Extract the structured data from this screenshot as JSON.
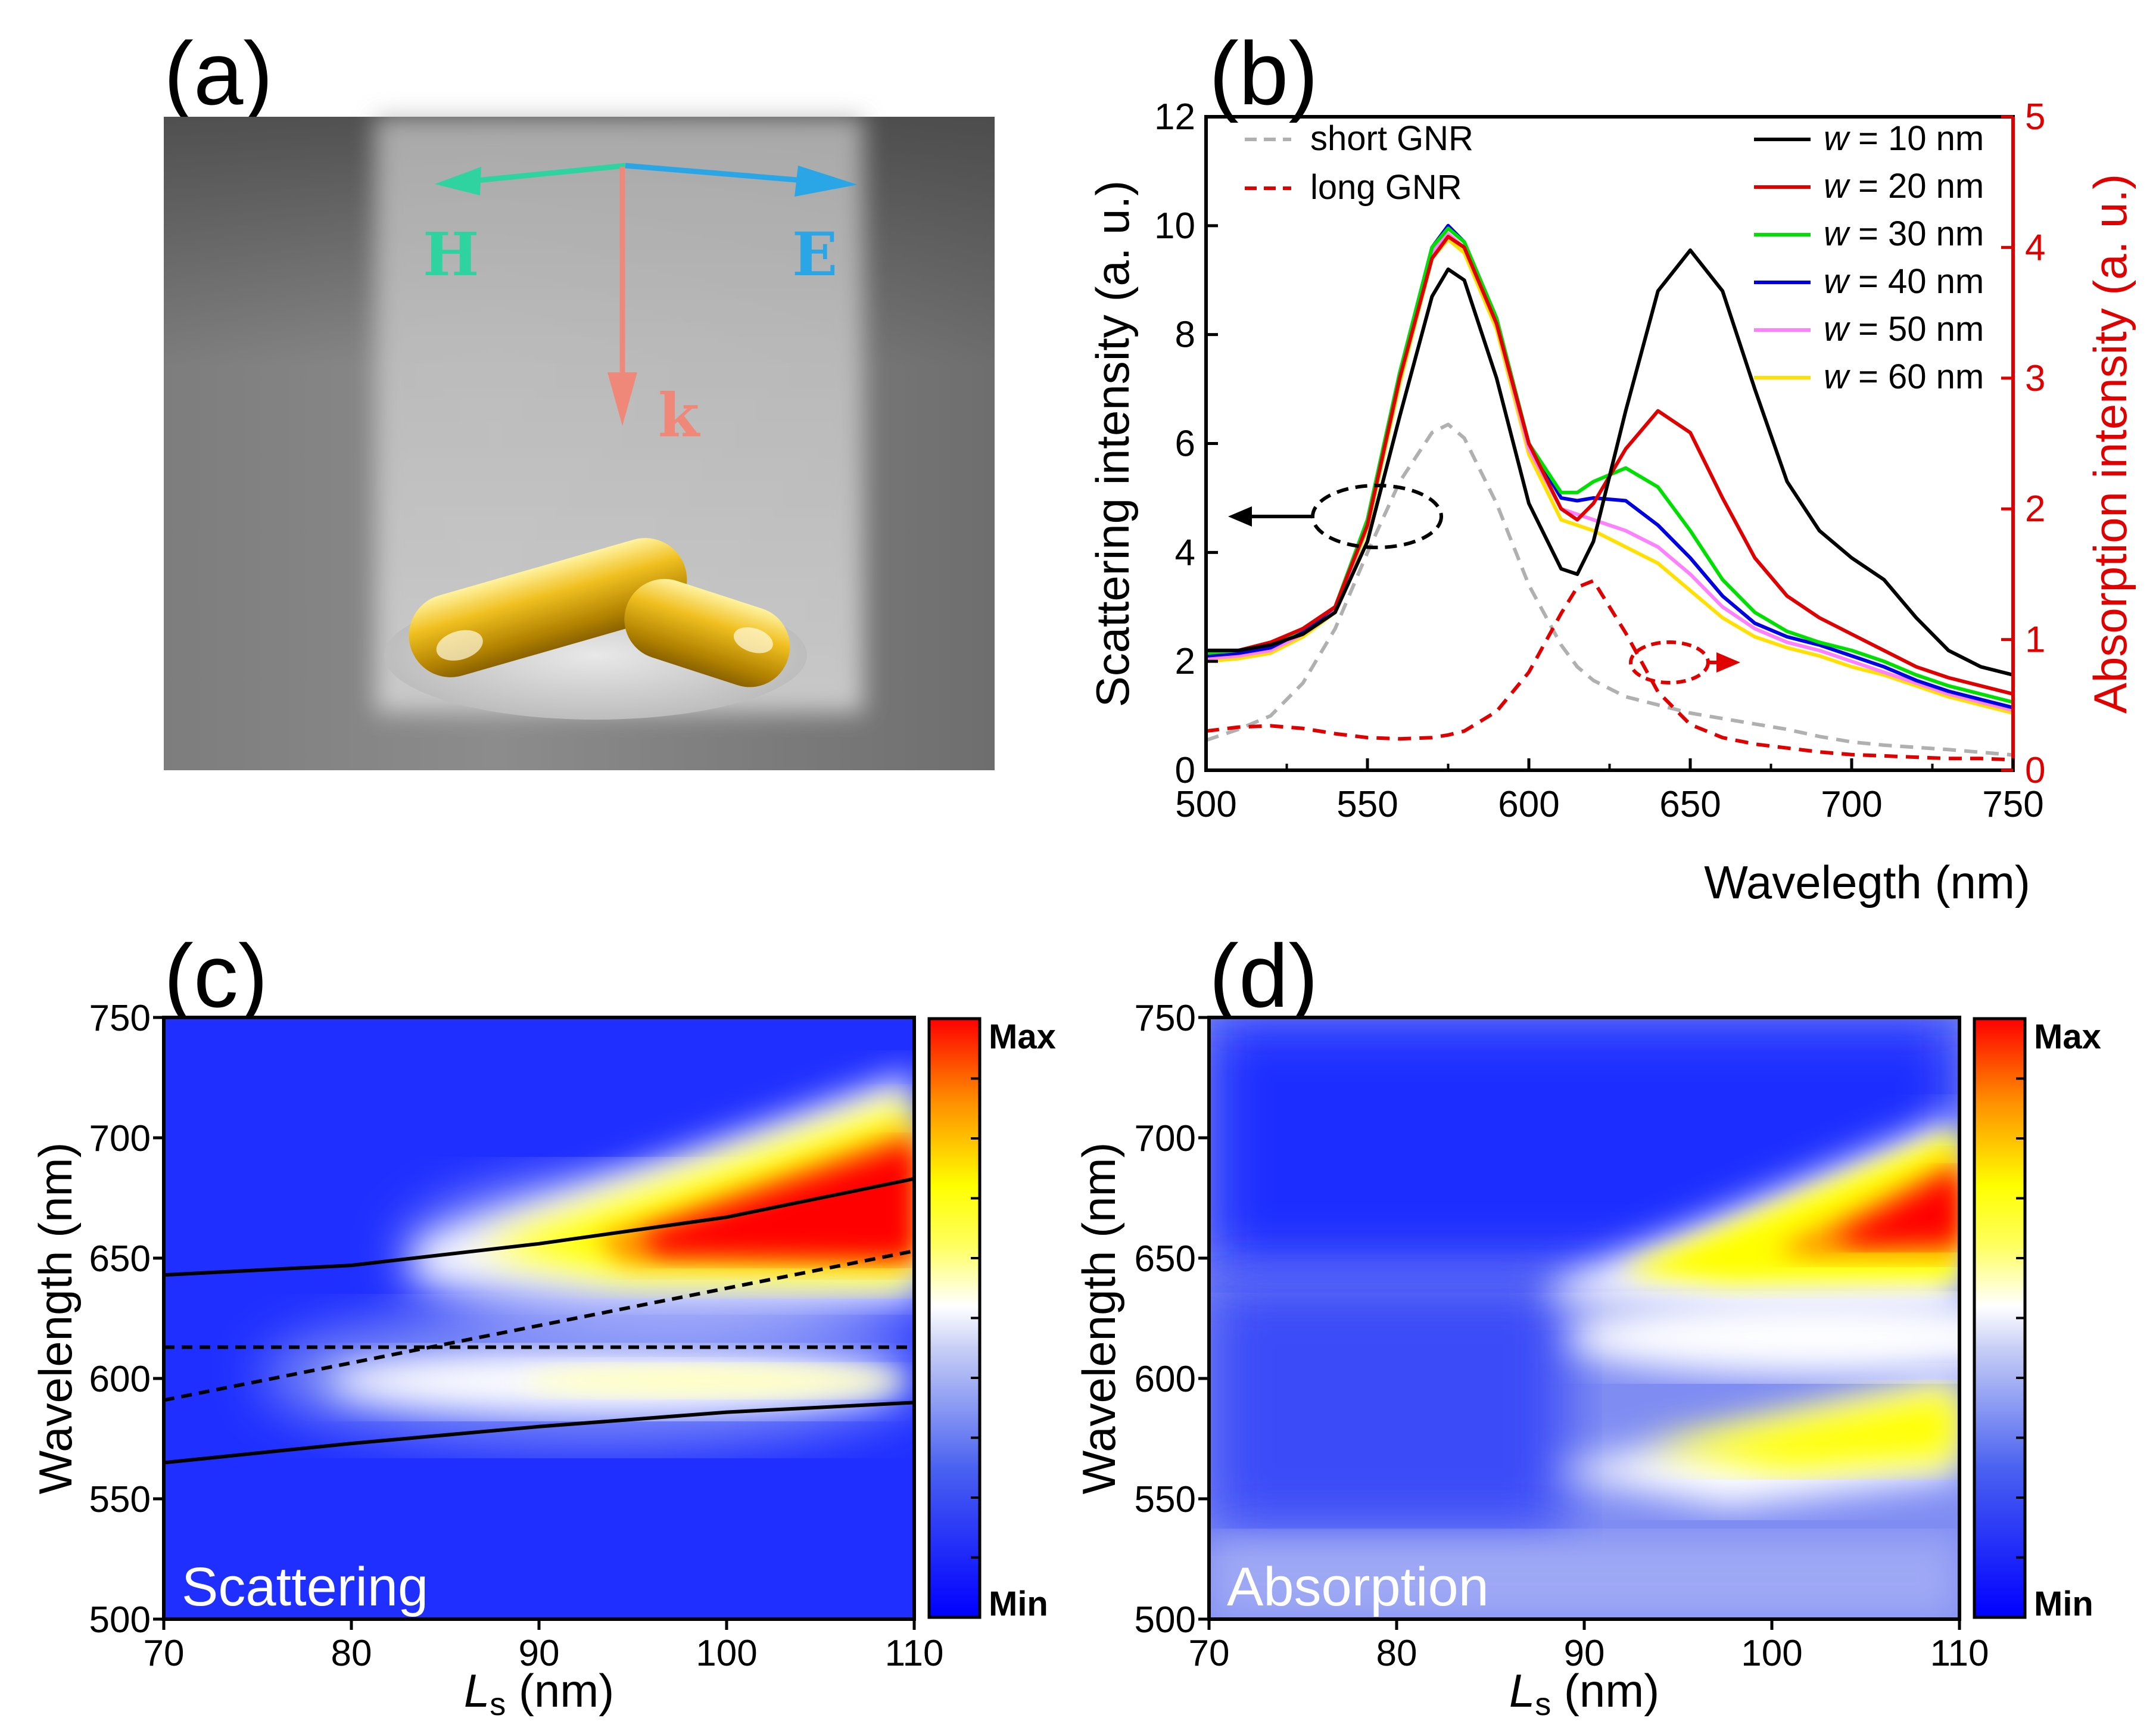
{
  "panels": {
    "a": {
      "label": "(a)",
      "h_label": "H",
      "e_label": "E",
      "k_label": "k"
    },
    "b": {
      "label": "(b)"
    },
    "c": {
      "label": "(c)",
      "inset": "Scattering"
    },
    "d": {
      "label": "(d)",
      "inset": "Absorption"
    }
  },
  "colors": {
    "H": "#2fd3a0",
    "E": "#2aa6e6",
    "k": "#f0887a"
  },
  "colorbar": {
    "max": "Max",
    "min": "Min"
  },
  "chart_data": [
    {
      "id": "b",
      "type": "line",
      "xlabel": "Wavelegth (nm)",
      "ylabel": "Scattering intensity (a. u.)",
      "y2label": "Absorption intensity (a. u.)",
      "xlim": [
        500,
        750
      ],
      "ylim": [
        0,
        12
      ],
      "y2lim": [
        0,
        5
      ],
      "xticks": [
        "500",
        "550",
        "600",
        "650",
        "700",
        "750"
      ],
      "yticks": [
        "0",
        "2",
        "4",
        "6",
        "8",
        "10",
        "12"
      ],
      "y2ticks": [
        "0",
        "1",
        "2",
        "3",
        "4",
        "5"
      ],
      "x": [
        500,
        510,
        520,
        530,
        540,
        550,
        560,
        570,
        575,
        580,
        590,
        600,
        610,
        615,
        620,
        630,
        640,
        650,
        660,
        670,
        680,
        690,
        700,
        710,
        720,
        730,
        740,
        750
      ],
      "series": [
        {
          "name": "short GNR",
          "axis": "left",
          "color": "#b0b0b0",
          "dash": true,
          "values": [
            0.55,
            0.75,
            1.0,
            1.6,
            2.6,
            4.0,
            5.3,
            6.2,
            6.35,
            6.1,
            4.9,
            3.4,
            2.3,
            1.9,
            1.65,
            1.35,
            1.2,
            1.05,
            0.95,
            0.85,
            0.75,
            0.62,
            0.52,
            0.46,
            0.42,
            0.38,
            0.33,
            0.28
          ]
        },
        {
          "name": "long GNR",
          "axis": "right",
          "color": "#e00000",
          "dash": true,
          "values": [
            0.3,
            0.33,
            0.34,
            0.32,
            0.28,
            0.25,
            0.24,
            0.25,
            0.27,
            0.3,
            0.45,
            0.75,
            1.2,
            1.4,
            1.45,
            1.05,
            0.6,
            0.35,
            0.25,
            0.2,
            0.17,
            0.14,
            0.12,
            0.11,
            0.1,
            0.09,
            0.09,
            0.08
          ]
        },
        {
          "name": "w = 10 nm",
          "axis": "left",
          "color": "#000000",
          "values": [
            2.2,
            2.2,
            2.3,
            2.5,
            2.9,
            4.2,
            6.5,
            8.7,
            9.2,
            9.0,
            7.2,
            4.9,
            3.7,
            3.6,
            4.2,
            6.6,
            8.8,
            9.55,
            8.8,
            7.0,
            5.3,
            4.4,
            3.9,
            3.5,
            2.8,
            2.2,
            1.9,
            1.75
          ]
        },
        {
          "name": "w = 20 nm",
          "axis": "left",
          "color": "#e00000",
          "values": [
            2.2,
            2.2,
            2.35,
            2.6,
            3.0,
            4.5,
            7.2,
            9.4,
            9.8,
            9.6,
            8.2,
            6.0,
            4.8,
            4.6,
            4.9,
            5.9,
            6.6,
            6.2,
            5.0,
            3.9,
            3.2,
            2.8,
            2.5,
            2.2,
            1.9,
            1.7,
            1.55,
            1.4
          ]
        },
        {
          "name": "w = 30 nm",
          "axis": "left",
          "color": "#00e000",
          "values": [
            2.15,
            2.2,
            2.3,
            2.6,
            3.0,
            4.6,
            7.3,
            9.6,
            9.95,
            9.7,
            8.3,
            6.0,
            5.1,
            5.1,
            5.3,
            5.55,
            5.2,
            4.4,
            3.5,
            2.9,
            2.55,
            2.35,
            2.2,
            2.0,
            1.75,
            1.55,
            1.4,
            1.25
          ]
        },
        {
          "name": "w = 40 nm",
          "axis": "left",
          "color": "#0000e0",
          "values": [
            2.1,
            2.15,
            2.25,
            2.55,
            3.0,
            4.6,
            7.3,
            9.6,
            10.0,
            9.7,
            8.3,
            6.0,
            5.0,
            4.95,
            5.0,
            4.95,
            4.5,
            3.9,
            3.2,
            2.7,
            2.45,
            2.3,
            2.1,
            1.9,
            1.65,
            1.45,
            1.3,
            1.15
          ]
        },
        {
          "name": "w = 50 nm",
          "axis": "left",
          "color": "#ff80ff",
          "values": [
            2.05,
            2.1,
            2.2,
            2.5,
            2.95,
            4.5,
            7.2,
            9.5,
            9.85,
            9.6,
            8.2,
            5.9,
            4.8,
            4.7,
            4.6,
            4.4,
            4.1,
            3.6,
            3.0,
            2.6,
            2.35,
            2.2,
            2.0,
            1.8,
            1.6,
            1.4,
            1.25,
            1.1
          ]
        },
        {
          "name": "w = 60 nm",
          "axis": "left",
          "color": "#ffe000",
          "values": [
            2.0,
            2.05,
            2.15,
            2.45,
            2.9,
            4.45,
            7.1,
            9.4,
            9.75,
            9.5,
            8.1,
            5.8,
            4.6,
            4.5,
            4.4,
            4.1,
            3.8,
            3.3,
            2.8,
            2.45,
            2.25,
            2.1,
            1.9,
            1.75,
            1.55,
            1.35,
            1.2,
            1.05
          ]
        }
      ]
    },
    {
      "id": "c",
      "type": "heatmap",
      "title": "Scattering",
      "xlabel_main": "L",
      "xlabel_sub": "s",
      "xlabel_unit": " (nm)",
      "ylabel": "Wavelength (nm)",
      "xlim": [
        70,
        110
      ],
      "ylim": [
        500,
        750
      ],
      "xticks": [
        "70",
        "80",
        "90",
        "100",
        "110"
      ],
      "yticks": [
        "500",
        "550",
        "600",
        "650",
        "700",
        "750"
      ],
      "upper_branch": [
        [
          70,
          643
        ],
        [
          80,
          647
        ],
        [
          90,
          656
        ],
        [
          100,
          667
        ],
        [
          110,
          683
        ]
      ],
      "lower_branch": [
        [
          70,
          565
        ],
        [
          80,
          573
        ],
        [
          90,
          580
        ],
        [
          100,
          586
        ],
        [
          110,
          590
        ]
      ],
      "dashed_horizontal": 613,
      "dashed_diagonal": [
        [
          70,
          591
        ],
        [
          110,
          653
        ]
      ]
    },
    {
      "id": "d",
      "type": "heatmap",
      "title": "Absorption",
      "xlabel_main": "L",
      "xlabel_sub": "s",
      "xlabel_unit": " (nm)",
      "ylabel": "Wavelength (nm)",
      "xlim": [
        70,
        110
      ],
      "ylim": [
        500,
        750
      ],
      "xticks": [
        "70",
        "80",
        "90",
        "100",
        "110"
      ],
      "yticks": [
        "500",
        "550",
        "600",
        "650",
        "700",
        "750"
      ]
    }
  ]
}
